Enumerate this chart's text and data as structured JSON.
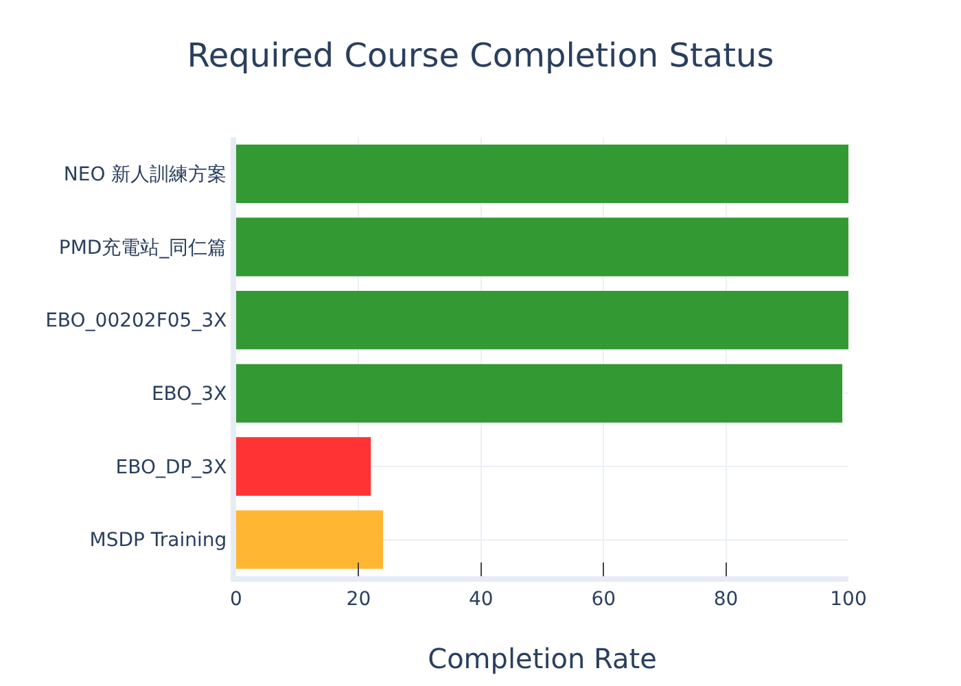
{
  "chart_data": {
    "type": "bar",
    "orientation": "horizontal",
    "title": "Required Course Completion Status",
    "xlabel": "Completion Rate",
    "categories": [
      "NEO 新人訓練方案",
      "PMD充電站_同仁篇",
      "EBO_00202F05_3X",
      "EBO_3X",
      "EBO_DP_3X",
      "MSDP Training"
    ],
    "values": [
      100,
      100,
      100,
      99,
      22,
      24
    ],
    "colors": [
      "#339933",
      "#339933",
      "#339933",
      "#339933",
      "#ff3333",
      "#ffb733"
    ],
    "xlim": [
      0,
      100
    ],
    "xticks": [
      0,
      20,
      40,
      60,
      80,
      100
    ],
    "grid": true
  }
}
